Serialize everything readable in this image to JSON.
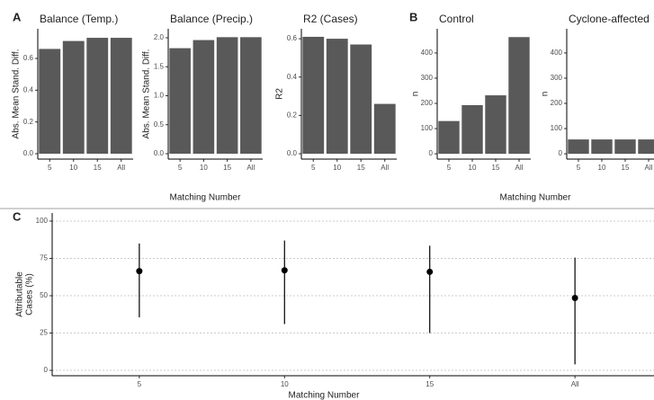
{
  "chart_data": [
    {
      "type": "bar",
      "panel": "A",
      "title": "Balance (Temp.)",
      "y_label": "Abs. Mean Stand. Diff.",
      "categories": [
        "5",
        "10",
        "15",
        "All"
      ],
      "values": [
        0.66,
        0.71,
        0.73,
        0.73
      ],
      "color": "#595959",
      "ylim": [
        -0.034,
        0.787
      ],
      "yticks": [
        {
          "value": 0,
          "label": "0.0"
        },
        {
          "value": 0.2,
          "label": "0.2"
        },
        {
          "value": 0.4,
          "label": "0.4"
        },
        {
          "value": 0.6,
          "label": "0.6"
        }
      ]
    },
    {
      "type": "bar",
      "title": "Balance (Precip.)",
      "y_label": "Abs. Mean Stand. Diff.",
      "x_label": "Matching Number",
      "categories": [
        "5",
        "10",
        "15",
        "All"
      ],
      "values": [
        1.82,
        1.96,
        2.01,
        2.01
      ],
      "color": "#595959",
      "ylim": [
        -0.093,
        2.155
      ],
      "yticks": [
        {
          "value": 0,
          "label": "0.0"
        },
        {
          "value": 0.5,
          "label": "0.5"
        },
        {
          "value": 1,
          "label": "1.0"
        },
        {
          "value": 1.5,
          "label": "1.5"
        },
        {
          "value": 2,
          "label": "2.0"
        }
      ]
    },
    {
      "type": "bar",
      "title": "R2 (Cases)",
      "y_label": "R2",
      "categories": [
        "5",
        "10",
        "15",
        "All"
      ],
      "values": [
        0.61,
        0.6,
        0.57,
        0.26
      ],
      "color": "#595959",
      "ylim": [
        -0.028,
        0.652
      ],
      "yticks": [
        {
          "value": 0,
          "label": "0.0"
        },
        {
          "value": 0.2,
          "label": "0.2"
        },
        {
          "value": 0.4,
          "label": "0.4"
        },
        {
          "value": 0.6,
          "label": "0.6"
        }
      ]
    },
    {
      "type": "bar",
      "panel": "B",
      "title": "Control",
      "y_label": "n",
      "x_label": "Matching Number",
      "categories": [
        "5",
        "10",
        "15",
        "All"
      ],
      "values": [
        130,
        193,
        232,
        463
      ],
      "color": "#595959",
      "ylim": [
        -21,
        496
      ],
      "yticks": [
        0,
        100,
        200,
        300,
        400
      ]
    },
    {
      "type": "bar",
      "title": "Cyclone-affected",
      "y_label": "n",
      "categories": [
        "5",
        "10",
        "15",
        "All"
      ],
      "values": [
        57,
        57,
        57,
        57
      ],
      "color": "#595959",
      "ylim": [
        -21,
        496
      ],
      "yticks": [
        0,
        100,
        200,
        300,
        400
      ]
    },
    {
      "type": "pointrange",
      "panel": "C",
      "y_label": [
        "Attributable",
        "Cases (%)"
      ],
      "x_label": "Matching Number",
      "categories": [
        "5",
        "10",
        "15",
        "All"
      ],
      "values": [
        66.5,
        67,
        66,
        48.5
      ],
      "lower": [
        35.5,
        31,
        25,
        4
      ],
      "upper": [
        85,
        87,
        83.5,
        75.5
      ],
      "color": "#000000",
      "ylim": [
        -3.6,
        105.4
      ],
      "yticks": [
        0,
        25,
        50,
        75,
        100
      ],
      "grid": true
    }
  ]
}
